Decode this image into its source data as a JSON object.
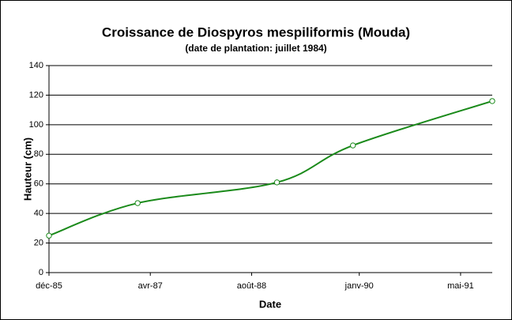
{
  "chart_data": {
    "type": "line",
    "title": "Croissance de Diospyros mespiliformis (Mouda)",
    "subtitle": "(date de plantation: juillet 1984)",
    "x_label": "Date",
    "y_label": "Hauteur (cm)",
    "x": [
      "1985-12",
      "1987-02",
      "1988-12",
      "1989-12",
      "1991-10"
    ],
    "series": [
      {
        "name": "Hauteur (cm)",
        "color": "#1a8a1a",
        "values": [
          25,
          47,
          61,
          86,
          116
        ]
      }
    ],
    "xlim": [
      "1985-12",
      "1991-10"
    ],
    "xticks": [
      {
        "value": "1985-12",
        "label": "déc-85"
      },
      {
        "value": "1987-04",
        "label": "avr-87"
      },
      {
        "value": "1988-08",
        "label": "août-88"
      },
      {
        "value": "1990-01",
        "label": "janv-90"
      },
      {
        "value": "1991-05",
        "label": "mai-91"
      }
    ],
    "ylim": [
      0,
      140
    ],
    "yticks": [
      0,
      20,
      40,
      60,
      80,
      100,
      120,
      140
    ],
    "grid": true,
    "smooth": true
  }
}
